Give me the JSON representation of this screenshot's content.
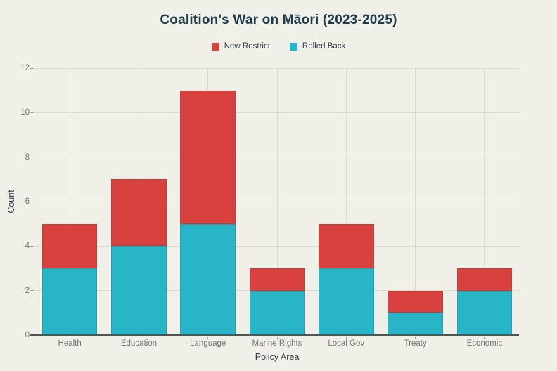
{
  "chart": {
    "background_color": "#f0efe8",
    "title_color": "#1d3a49",
    "tick_label_color": "#73776f",
    "axis_title_color": "#33434b",
    "gridline_color": "#dddbd0",
    "axis_line_color": "#4e5452"
  },
  "chart_data": {
    "type": "bar",
    "stacked": true,
    "title": "Coalition's War on Māori (2023-2025)",
    "xlabel": "Policy Area",
    "ylabel": "Count",
    "categories": [
      "Health",
      "Education",
      "Language",
      "Marine Rights",
      "Local Gov",
      "Treaty",
      "Economic"
    ],
    "series": [
      {
        "name": "Rolled Back",
        "color": "#29b5c8",
        "values": [
          3,
          4,
          5,
          2,
          3,
          1,
          2
        ]
      },
      {
        "name": "New Restrict",
        "color": "#d9413e",
        "values": [
          2,
          3,
          6,
          1,
          2,
          1,
          1
        ]
      }
    ],
    "totals": [
      5,
      7,
      11,
      3,
      5,
      2,
      3
    ],
    "legend_order": [
      "New Restrict",
      "Rolled Back"
    ],
    "legend_position": "top-center",
    "ylim": [
      0,
      12
    ],
    "yticks": [
      0,
      2,
      4,
      6,
      8,
      10,
      12
    ],
    "grid": true,
    "bar_width_fraction": 0.8
  }
}
